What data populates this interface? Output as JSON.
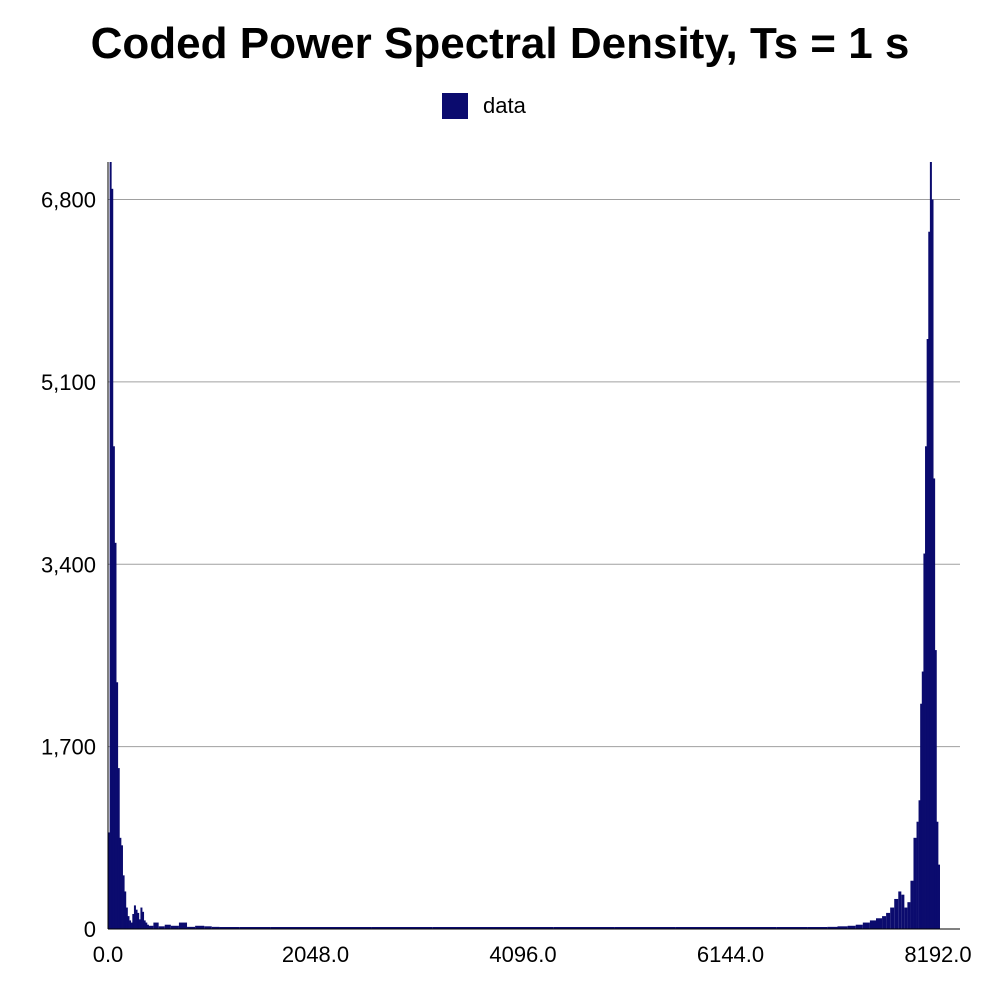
{
  "chart_data": {
    "type": "bar",
    "title": "Coded Power Spectral Density,  Ts = 1 s",
    "legend": {
      "position": "top-center",
      "entries": [
        {
          "name": "data",
          "color": "#0b0b6e"
        }
      ]
    },
    "xlim": [
      0,
      8192
    ],
    "ylim": [
      0,
      7150
    ],
    "xticks": [
      0,
      2048,
      4096,
      6144,
      8192
    ],
    "xtick_labels": [
      "0.0",
      "2048.0",
      "4096.0",
      "6144.0",
      "8192.0"
    ],
    "yticks": [
      0,
      1700,
      3400,
      5100,
      6800
    ],
    "ytick_labels": [
      "0",
      "1,700",
      "3,400",
      "5,100",
      "6,800"
    ],
    "grid": true,
    "series": [
      {
        "name": "data",
        "color": "#0b0b6e",
        "x": [
          0,
          16,
          32,
          48,
          64,
          80,
          96,
          112,
          128,
          144,
          160,
          176,
          192,
          208,
          224,
          240,
          256,
          272,
          288,
          304,
          320,
          336,
          352,
          368,
          384,
          400,
          448,
          500,
          560,
          620,
          700,
          780,
          860,
          950,
          1024,
          1100,
          1300,
          1600,
          2048,
          2600,
          3200,
          3800,
          4096,
          4400,
          5000,
          5600,
          6144,
          6600,
          6900,
          7100,
          7200,
          7300,
          7380,
          7450,
          7520,
          7580,
          7640,
          7680,
          7720,
          7760,
          7800,
          7830,
          7860,
          7890,
          7920,
          7950,
          7980,
          8000,
          8016,
          8032,
          8048,
          8064,
          8080,
          8096,
          8112,
          8128,
          8144,
          8160,
          8176,
          8192
        ],
        "values": [
          900,
          7150,
          6900,
          4500,
          3600,
          2300,
          1500,
          850,
          780,
          500,
          350,
          200,
          120,
          80,
          60,
          140,
          220,
          180,
          150,
          90,
          200,
          160,
          80,
          60,
          40,
          30,
          60,
          25,
          40,
          30,
          60,
          20,
          30,
          25,
          20,
          15,
          12,
          10,
          8,
          8,
          8,
          8,
          8,
          8,
          8,
          8,
          8,
          10,
          15,
          20,
          25,
          30,
          40,
          60,
          80,
          100,
          120,
          150,
          200,
          280,
          350,
          320,
          200,
          250,
          450,
          850,
          1000,
          1200,
          2100,
          2400,
          3500,
          4500,
          5500,
          6500,
          7150,
          6800,
          4200,
          2600,
          1000,
          600
        ]
      }
    ]
  }
}
